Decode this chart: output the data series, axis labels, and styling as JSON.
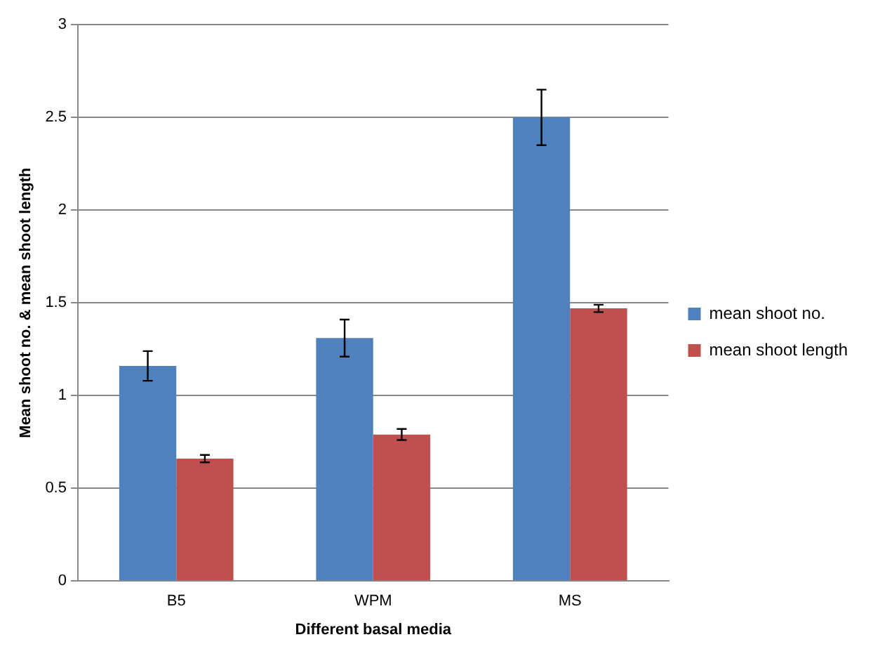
{
  "chart_data": {
    "type": "bar",
    "xlabel": "Different basal media",
    "ylabel": "Mean shoot no. & mean shoot length",
    "categories": [
      "B5",
      "WPM",
      "MS"
    ],
    "series": [
      {
        "name": "mean shoot no.",
        "color": "#4f81bd",
        "values": [
          1.16,
          1.31,
          2.5
        ],
        "errors": [
          0.08,
          0.1,
          0.15
        ]
      },
      {
        "name": "mean shoot length",
        "color": "#c0504d",
        "values": [
          0.66,
          0.79,
          1.47
        ],
        "errors": [
          0.02,
          0.03,
          0.02
        ]
      }
    ],
    "ylim": [
      0,
      3
    ],
    "yticks": [
      0,
      0.5,
      1,
      1.5,
      2,
      2.5,
      3
    ],
    "grid": "y",
    "legend": "right"
  }
}
